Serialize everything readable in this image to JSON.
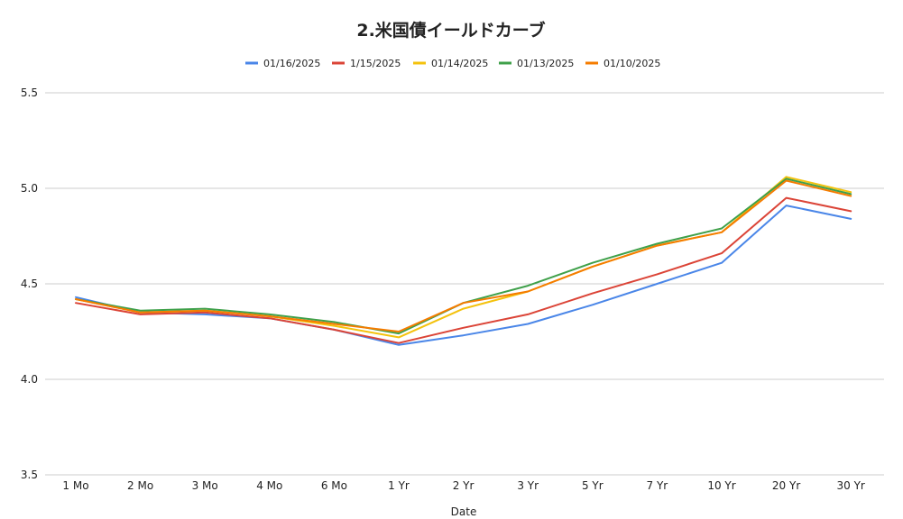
{
  "chart_data": {
    "type": "line",
    "title": "2.米国債イールドカーブ",
    "xlabel": "Date",
    "ylabel": "",
    "categories": [
      "1 Mo",
      "2 Mo",
      "3 Mo",
      "4 Mo",
      "6 Mo",
      "1 Yr",
      "2 Yr",
      "3 Yr",
      "5 Yr",
      "7 Yr",
      "10 Yr",
      "20 Yr",
      "30 Yr"
    ],
    "ylim": [
      3.5,
      5.5
    ],
    "yticks": [
      "3.5",
      "4.0",
      "4.5",
      "5.0",
      "5.5"
    ],
    "grid": true,
    "legend_position": "top",
    "series": [
      {
        "name": "01/16/2025",
        "color": "#4a86e8",
        "values": [
          4.43,
          4.35,
          4.34,
          4.32,
          4.26,
          4.18,
          4.23,
          4.29,
          4.39,
          4.5,
          4.61,
          4.91,
          4.84
        ]
      },
      {
        "name": "1/15/2025",
        "color": "#db4437",
        "values": [
          4.4,
          4.34,
          4.35,
          4.32,
          4.26,
          4.19,
          4.27,
          4.34,
          4.45,
          4.55,
          4.66,
          4.95,
          4.88
        ]
      },
      {
        "name": "01/14/2025",
        "color": "#f4c20d",
        "values": [
          4.42,
          4.35,
          4.36,
          4.33,
          4.28,
          4.22,
          4.37,
          4.46,
          4.59,
          4.7,
          4.77,
          5.06,
          4.98
        ]
      },
      {
        "name": "01/13/2025",
        "color": "#3fa04a",
        "values": [
          4.42,
          4.36,
          4.37,
          4.34,
          4.3,
          4.24,
          4.4,
          4.49,
          4.61,
          4.71,
          4.79,
          5.05,
          4.97
        ]
      },
      {
        "name": "01/10/2025",
        "color": "#f57c00",
        "values": [
          4.42,
          4.35,
          4.36,
          4.33,
          4.29,
          4.25,
          4.4,
          4.46,
          4.59,
          4.7,
          4.77,
          5.04,
          4.96
        ]
      }
    ]
  }
}
